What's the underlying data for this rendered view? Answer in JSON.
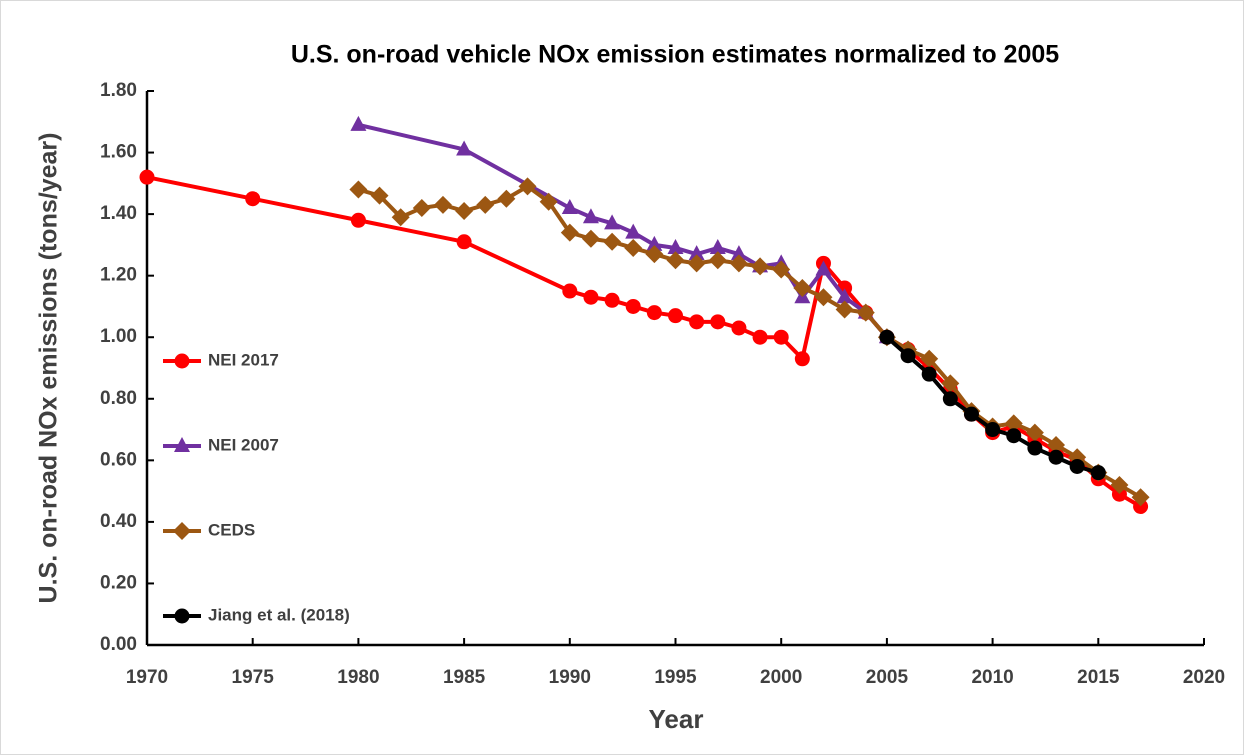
{
  "chart_data": {
    "type": "line",
    "title": "U.S. on-road vehicle NOx emission estimates normalized to 2005",
    "xlabel": "Year",
    "ylabel": "U.S. on-road NOx emissions (tons/year)",
    "xlim": [
      1970,
      2020
    ],
    "xticks": [
      1970,
      1975,
      1980,
      1985,
      1990,
      1995,
      2000,
      2005,
      2010,
      2015,
      2020
    ],
    "ylim": [
      0,
      1.8
    ],
    "yticks": [
      {
        "value": 0,
        "label": "0.00"
      },
      {
        "value": 0.2,
        "label": "0.20"
      },
      {
        "value": 0.4,
        "label": "0.40"
      },
      {
        "value": 0.6,
        "label": "0.60"
      },
      {
        "value": 0.8,
        "label": "0.80"
      },
      {
        "value": 1,
        "label": "1.00"
      },
      {
        "value": 1.2,
        "label": "1.20"
      },
      {
        "value": 1.4,
        "label": "1.40"
      },
      {
        "value": 1.6,
        "label": "1.60"
      },
      {
        "value": 1.8,
        "label": "1.80"
      }
    ],
    "legend": "left",
    "series": [
      {
        "name": "NEI 2017",
        "color": "#ff0000",
        "marker": "circle",
        "x": [
          1970,
          1975,
          1980,
          1985,
          1990,
          1991,
          1992,
          1993,
          1994,
          1995,
          1996,
          1997,
          1998,
          1999,
          2000,
          2001,
          2002,
          2003,
          2004,
          2005,
          2006,
          2007,
          2008,
          2009,
          2010,
          2011,
          2012,
          2013,
          2014,
          2015,
          2016,
          2017
        ],
        "values": [
          1.52,
          1.45,
          1.38,
          1.31,
          1.15,
          1.13,
          1.12,
          1.1,
          1.08,
          1.07,
          1.05,
          1.05,
          1.03,
          1.0,
          1.0,
          0.93,
          1.24,
          1.16,
          1.08,
          1.0,
          0.96,
          0.9,
          0.83,
          0.75,
          0.69,
          0.71,
          0.67,
          0.63,
          0.6,
          0.54,
          0.49,
          0.45
        ]
      },
      {
        "name": "NEI 2007",
        "color": "#7030a0",
        "marker": "triangle",
        "x": [
          1980,
          1985,
          1990,
          1991,
          1992,
          1993,
          1994,
          1995,
          1996,
          1997,
          1998,
          1999,
          2000,
          2001,
          2002,
          2003,
          2004,
          2005
        ],
        "values": [
          1.69,
          1.61,
          1.42,
          1.39,
          1.37,
          1.34,
          1.3,
          1.29,
          1.27,
          1.29,
          1.27,
          1.23,
          1.24,
          1.13,
          1.22,
          1.13,
          1.08,
          1.0
        ]
      },
      {
        "name": "CEDS",
        "color": "#9c5712",
        "marker": "diamond",
        "x": [
          1980,
          1981,
          1982,
          1983,
          1984,
          1985,
          1986,
          1987,
          1988,
          1989,
          1990,
          1991,
          1992,
          1993,
          1994,
          1995,
          1996,
          1997,
          1998,
          1999,
          2000,
          2001,
          2002,
          2003,
          2004,
          2005,
          2006,
          2007,
          2008,
          2009,
          2010,
          2011,
          2012,
          2013,
          2014,
          2015,
          2016,
          2017
        ],
        "values": [
          1.48,
          1.46,
          1.39,
          1.42,
          1.43,
          1.41,
          1.43,
          1.45,
          1.49,
          1.44,
          1.34,
          1.32,
          1.31,
          1.29,
          1.27,
          1.25,
          1.24,
          1.25,
          1.24,
          1.23,
          1.22,
          1.16,
          1.13,
          1.09,
          1.08,
          1.0,
          0.96,
          0.93,
          0.85,
          0.76,
          0.71,
          0.72,
          0.69,
          0.65,
          0.61,
          0.56,
          0.52,
          0.48
        ]
      },
      {
        "name": "Jiang et al. (2018)",
        "color": "#000000",
        "marker": "circle",
        "x": [
          2005,
          2006,
          2007,
          2008,
          2009,
          2010,
          2011,
          2012,
          2013,
          2014,
          2015
        ],
        "values": [
          1.0,
          0.94,
          0.88,
          0.8,
          0.75,
          0.7,
          0.68,
          0.64,
          0.61,
          0.58,
          0.56
        ]
      }
    ]
  }
}
